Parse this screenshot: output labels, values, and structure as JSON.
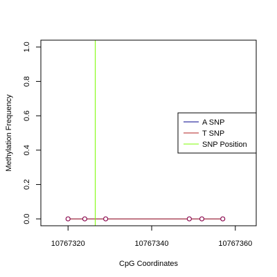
{
  "chart_data": {
    "type": "line",
    "xlabel": "CpG Coordinates",
    "ylabel": "Methylation Frequency",
    "xlim": [
      10767313.5,
      10767365
    ],
    "ylim": [
      -0.04,
      1.04
    ],
    "x_ticks": [
      10767320,
      10767340,
      10767360
    ],
    "x_tick_labels": [
      "10767320",
      "10767340",
      "10767360"
    ],
    "y_ticks": [
      0.0,
      0.2,
      0.4,
      0.6,
      0.8,
      1.0
    ],
    "y_tick_labels": [
      "0.0",
      "0.2",
      "0.4",
      "0.6",
      "0.8",
      "1.0"
    ],
    "grid": false,
    "legend_position": "right",
    "series": [
      {
        "name": "A SNP",
        "color": "#00008B",
        "x": [
          10767320,
          10767324,
          10767329,
          10767349,
          10767352,
          10767357
        ],
        "y": [
          0,
          0,
          0,
          0,
          0,
          0
        ]
      },
      {
        "name": "T SNP",
        "color": "#B22222",
        "x": [
          10767320,
          10767324,
          10767329,
          10767349,
          10767352,
          10767357
        ],
        "y": [
          0,
          0,
          0,
          0,
          0,
          0
        ]
      }
    ],
    "points": {
      "x": [
        10767320,
        10767324,
        10767329,
        10767349,
        10767352,
        10767357
      ],
      "y": [
        0,
        0,
        0,
        0,
        0,
        0
      ],
      "color": "#8B0A50"
    },
    "snp_position": {
      "name": "SNP Position",
      "x": 10767326.5,
      "color": "#7CFC00"
    }
  }
}
